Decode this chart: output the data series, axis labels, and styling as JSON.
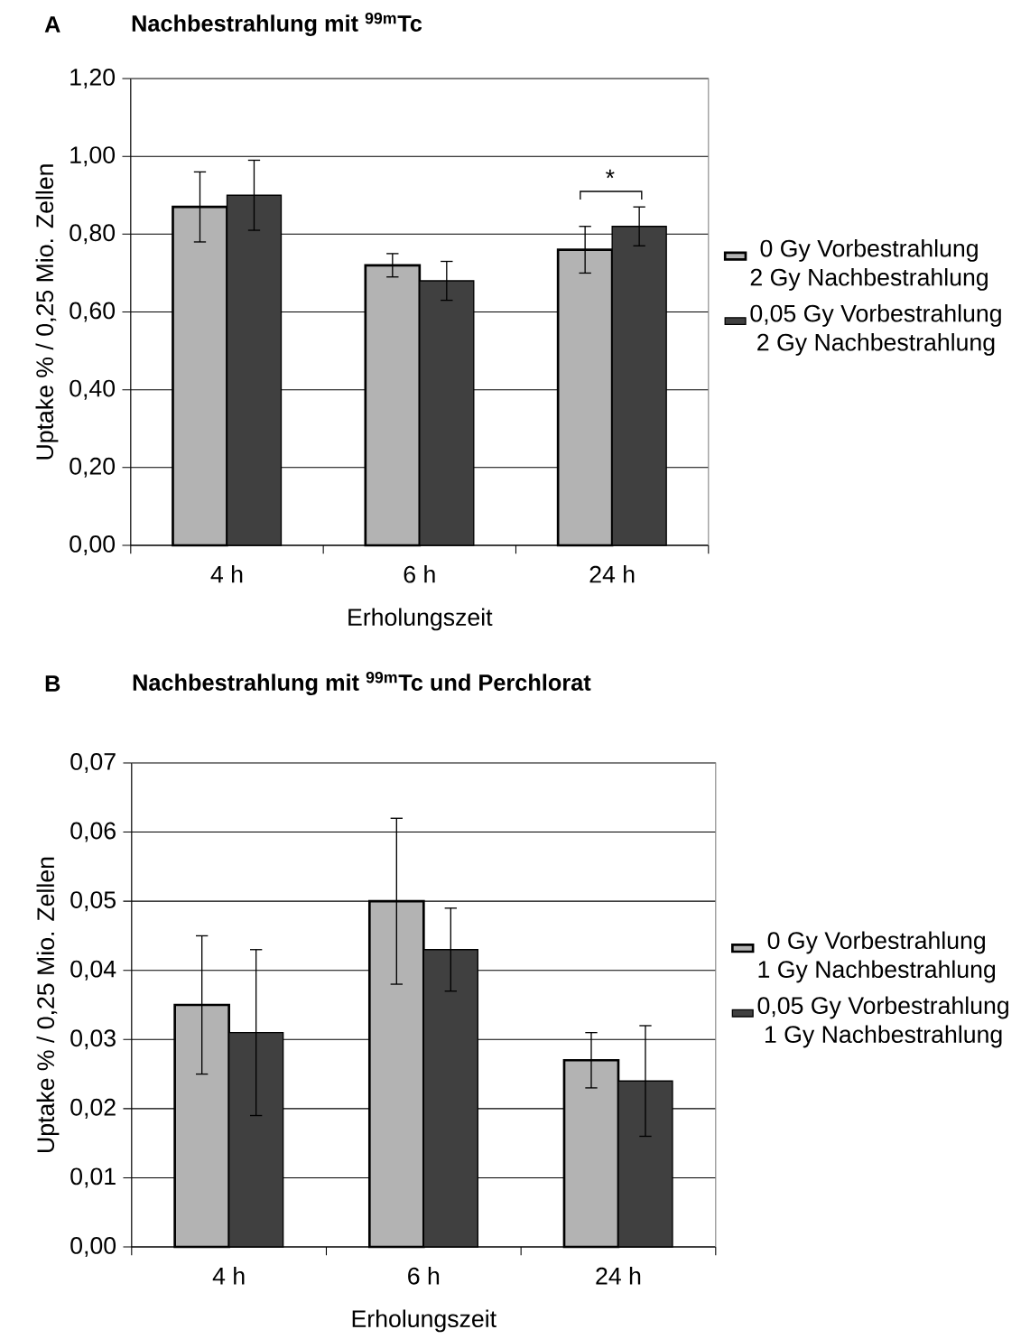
{
  "chart_data": [
    {
      "type": "bar",
      "title": "Nachbestrahlung mit $^{99m}$Tc",
      "annotations": [
        "A",
        "*"
      ],
      "categories": [
        "4 h",
        "6 h",
        "24 h"
      ],
      "xlabel": "Erholungszeit",
      "ylabel": "Uptake % / 0,25 Mio. Zellen",
      "ylim": [
        0,
        1.2
      ],
      "yticks": [
        {
          "value": 0,
          "label": "0,00"
        },
        {
          "value": 0.2,
          "label": "0,20"
        },
        {
          "value": 0.4,
          "label": "0,40"
        },
        {
          "value": 0.6,
          "label": "0,60"
        },
        {
          "value": 0.8,
          "label": "0,80"
        },
        {
          "value": 1.0,
          "label": "1,00"
        },
        {
          "value": 1.2,
          "label": "1,20"
        }
      ],
      "grid": "y",
      "legend": "right",
      "series": [
        {
          "name": "0 Gy Vorbestrahlung\n2 Gy Nachbestrahlung",
          "color": "#b3b3b3",
          "values": [
            0.87,
            0.72,
            0.76
          ],
          "errors": [
            0.09,
            0.03,
            0.06
          ]
        },
        {
          "name": "0,05 Gy Vorbestrahlung\n2 Gy Nachbestrahlung",
          "color": "#404040",
          "values": [
            0.9,
            0.68,
            0.82
          ],
          "errors": [
            0.09,
            0.05,
            0.05
          ]
        }
      ]
    },
    {
      "type": "bar",
      "title": "Nachbestrahlung mit $^{99m}$Tc und Perchlorat",
      "annotations": [
        "B"
      ],
      "categories": [
        "4 h",
        "6 h",
        "24 h"
      ],
      "xlabel": "Erholungszeit",
      "ylabel": "Uptake % / 0,25 Mio. Zellen",
      "ylim": [
        0,
        0.07
      ],
      "yticks": [
        {
          "value": 0,
          "label": "0,00"
        },
        {
          "value": 0.01,
          "label": "0,01"
        },
        {
          "value": 0.02,
          "label": "0,02"
        },
        {
          "value": 0.03,
          "label": "0,03"
        },
        {
          "value": 0.04,
          "label": "0,04"
        },
        {
          "value": 0.05,
          "label": "0,05"
        },
        {
          "value": 0.06,
          "label": "0,06"
        },
        {
          "value": 0.07,
          "label": "0,07"
        }
      ],
      "grid": "y",
      "legend": "right",
      "series": [
        {
          "name": "0 Gy Vorbestrahlung\n1 Gy Nachbestrahlung",
          "color": "#b3b3b3",
          "values": [
            0.035,
            0.05,
            0.027
          ],
          "errors": [
            0.01,
            0.012,
            0.004
          ]
        },
        {
          "name": "0,05 Gy Vorbestrahlung\n1 Gy Nachbestrahlung",
          "color": "#404040",
          "values": [
            0.031,
            0.043,
            0.024
          ],
          "errors": [
            0.012,
            0.006,
            0.008
          ]
        }
      ]
    }
  ]
}
